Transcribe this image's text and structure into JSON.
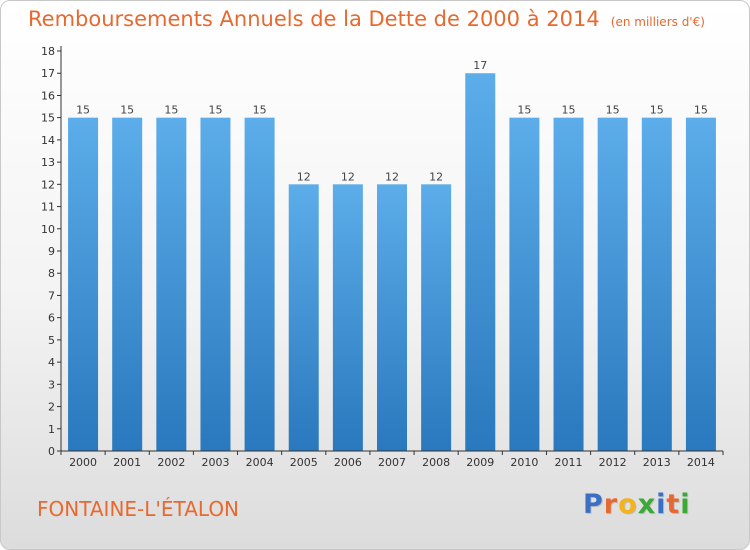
{
  "header": {
    "title": "Remboursements Annuels de la Dette de 2000 à 2014",
    "subtitle": "(en milliers d'€)"
  },
  "footer": {
    "town": "FONTAINE-L'ÉTALON",
    "logo": [
      "P",
      "r",
      "o",
      "x",
      "i",
      "t",
      "i"
    ],
    "logo_colors": [
      "#3a6fc4",
      "#e8692f",
      "#f2b31b",
      "#3aa935",
      "#3a6fc4",
      "#e8692f",
      "#3aa935"
    ]
  },
  "colors": {
    "bar": "#3f93d8",
    "bar_light": "#5cadea",
    "bar_dark": "#2a78bd",
    "accent": "#e8692f"
  },
  "chart_data": {
    "type": "bar",
    "title": "Remboursements Annuels de la Dette de 2000 à 2014",
    "subtitle": "(en milliers d'€)",
    "xlabel": "",
    "ylabel": "",
    "categories": [
      "2000",
      "2001",
      "2002",
      "2003",
      "2004",
      "2005",
      "2006",
      "2007",
      "2008",
      "2009",
      "2010",
      "2011",
      "2012",
      "2013",
      "2014"
    ],
    "values": [
      15,
      15,
      15,
      15,
      15,
      12,
      12,
      12,
      12,
      17,
      15,
      15,
      15,
      15,
      15
    ],
    "ylim": [
      0,
      18
    ],
    "yticks": [
      "0",
      "1",
      "2",
      "3",
      "4",
      "5",
      "6",
      "7",
      "8",
      "9",
      "10",
      "11",
      "12",
      "13",
      "14",
      "15",
      "16",
      "17",
      "18"
    ],
    "grid": false
  }
}
